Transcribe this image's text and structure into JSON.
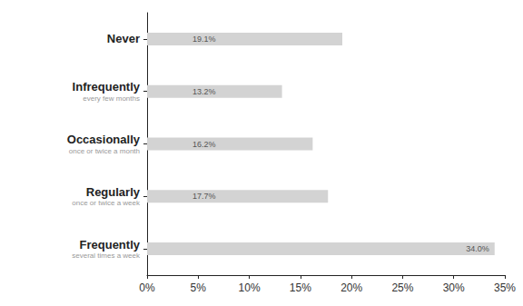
{
  "chart_data": {
    "type": "bar",
    "orientation": "horizontal",
    "categories": [
      "Never",
      "Infrequently",
      "Occasionally",
      "Regularly",
      "Frequently"
    ],
    "category_subtitles": [
      null,
      "every few months",
      "once or twice a month",
      "once or twice a week",
      "several times a week"
    ],
    "values": [
      19.1,
      13.2,
      16.2,
      17.7,
      34.0
    ],
    "value_labels": [
      "19.1%",
      "13.2%",
      "16.2%",
      "17.7%",
      "34.0%"
    ],
    "data_labels": true,
    "color": "#d3d3d3",
    "xlim": [
      0,
      35
    ],
    "xticks": [
      {
        "value": 0,
        "label": "0%"
      },
      {
        "value": 5,
        "label": "5%"
      },
      {
        "value": 10,
        "label": "10%"
      },
      {
        "value": 15,
        "label": "15%"
      },
      {
        "value": 20,
        "label": "20%"
      },
      {
        "value": 25,
        "label": "25%"
      },
      {
        "value": 30,
        "label": "30%"
      },
      {
        "value": 35,
        "label": "35%"
      }
    ],
    "grid": false
  }
}
